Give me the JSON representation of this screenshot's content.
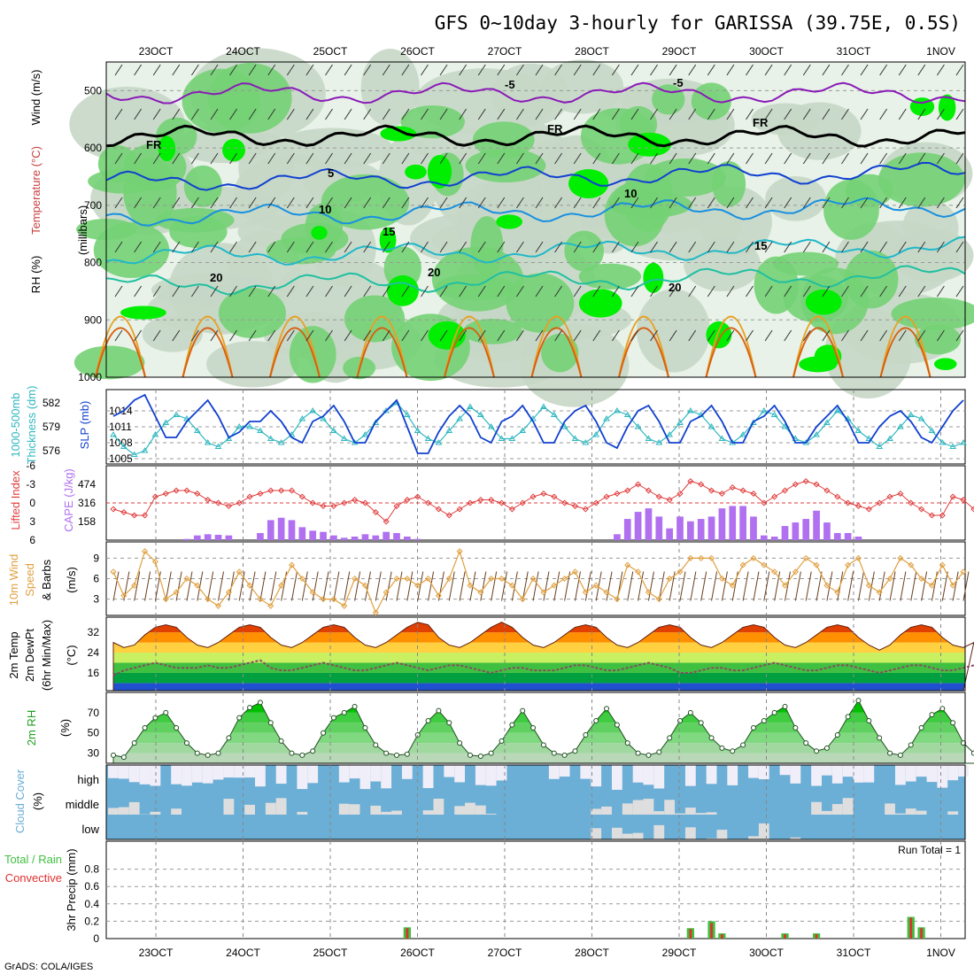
{
  "title": "GFS 0~10day 3-hourly for GARISSA (39.75E, 0.5S)",
  "footer": "GrADS: COLA/IGES",
  "colors": {
    "rh_light": "#e8f2e8",
    "rh_mid": "#c7d7c7",
    "rh_green": "#74d174",
    "rh_bright": "#00ee00",
    "slp": "#1040d0",
    "thickness": "#30b8c0",
    "lifted_index": "#e03c3c",
    "cape": "#b070f0",
    "wind": "#e0a040",
    "temp_dark": "#d33000",
    "temp_orange": "#ff8c00",
    "dewpt": "#8b4a60",
    "cloud": "#6baed6",
    "cloud_clear": "#f0eef8",
    "precip_total": "#40c040",
    "precip_conv": "#e03030"
  },
  "chart_data": [
    {
      "panel": "upper-air",
      "type": "heatmap",
      "ylabel_parts": [
        "RH (%)",
        "Temperature (°C)",
        "Wind (m/s)",
        "(millibars)"
      ],
      "y_ticks": [
        500,
        600,
        700,
        800,
        900,
        1000
      ],
      "ylim": [
        1000,
        450
      ],
      "isotherm_labels": [
        "-5",
        "FR",
        "FR",
        "FR",
        "-5",
        "5",
        "10",
        "10",
        "15",
        "15",
        "20",
        "20",
        "20"
      ]
    },
    {
      "panel": "slp-thickness",
      "type": "line",
      "ylabel_parts": [
        "1000-500mb",
        "Thickness (dm)",
        "SLP (mb)"
      ],
      "thickness_ticks": [
        576,
        579,
        582
      ],
      "slp_ticks": [
        1005,
        1008,
        1011,
        1014
      ],
      "slp": [
        1013,
        1014,
        1016,
        1017,
        1013,
        1009,
        1009,
        1012,
        1014,
        1016,
        1013,
        1009,
        1010,
        1012,
        1012,
        1014,
        1012,
        1009,
        1008,
        1012,
        1013,
        1015,
        1012,
        1008,
        1008,
        1012,
        1014,
        1016,
        1011,
        1006,
        1006,
        1010,
        1013,
        1015,
        1013,
        1009,
        1008,
        1012,
        1013,
        1015,
        1012,
        1008,
        1008,
        1012,
        1014,
        1015,
        1012,
        1008,
        1007,
        1011,
        1014,
        1015,
        1012,
        1008,
        1008,
        1012,
        1013,
        1015,
        1012,
        1008,
        1008,
        1012,
        1013,
        1015,
        1012,
        1008,
        1008,
        1011,
        1013,
        1015,
        1012,
        1008,
        1008,
        1011,
        1013,
        1014,
        1012,
        1009,
        1008,
        1011,
        1014,
        1016
      ],
      "thickness": [
        578.0,
        576.5,
        575.5,
        576.0,
        578.0,
        579.5,
        580.5,
        580.0,
        578.5,
        577.0,
        576.5,
        577.5,
        579.0,
        579.0,
        578.5,
        577.5,
        577.0,
        578.0,
        580.0,
        581.0,
        580.0,
        578.5,
        577.5,
        577.0,
        578.0,
        579.5,
        581.0,
        582.0,
        580.5,
        578.5,
        577.5,
        577.0,
        578.5,
        580.0,
        581.5,
        580.5,
        579.0,
        577.5,
        577.5,
        578.5,
        580.0,
        581.5,
        580.5,
        579.0,
        577.5,
        577.0,
        578.0,
        580.0,
        581.0,
        580.5,
        579.0,
        577.5,
        577.0,
        578.0,
        579.5,
        581.0,
        580.5,
        579.0,
        577.5,
        577.0,
        578.0,
        579.5,
        581.0,
        580.5,
        579.0,
        577.5,
        577.0,
        578.0,
        579.5,
        581.0,
        580.0,
        578.5,
        577.5,
        576.5,
        577.5,
        579.0,
        580.5,
        580.0,
        578.5,
        577.0,
        576.5,
        577.0
      ]
    },
    {
      "panel": "lifted-cape",
      "type": "bar",
      "ylabel_parts": [
        "Lifted Index",
        "CAPE (J/kg)"
      ],
      "li_ticks": [
        "-6",
        "-3",
        "0",
        "3",
        "6"
      ],
      "cape_ticks": [
        158,
        316,
        474
      ],
      "cape": [
        0,
        0,
        0,
        0,
        0,
        0,
        0,
        10,
        40,
        50,
        45,
        40,
        0,
        0,
        60,
        170,
        190,
        170,
        110,
        80,
        70,
        40,
        20,
        30,
        50,
        40,
        70,
        60,
        30,
        10,
        0,
        0,
        0,
        0,
        0,
        0,
        0,
        0,
        0,
        0,
        0,
        0,
        0,
        0,
        0,
        0,
        0,
        0,
        50,
        180,
        240,
        270,
        200,
        100,
        200,
        160,
        180,
        200,
        270,
        290,
        290,
        200,
        40,
        30,
        120,
        150,
        180,
        250,
        150,
        60,
        60,
        30,
        0,
        0,
        0,
        0,
        0,
        0,
        0,
        0,
        0,
        0
      ],
      "lifted_index": [
        1,
        1.5,
        2,
        2,
        -1,
        -1.5,
        -2,
        -2,
        -1.5,
        -0.5,
        0,
        0.5,
        0,
        -1,
        -1.5,
        -2,
        -2,
        -2,
        -1,
        0,
        0.5,
        0.5,
        0,
        -0.5,
        0,
        1.5,
        3,
        0.5,
        -0.5,
        -1,
        0,
        1,
        2,
        1,
        0,
        -0.5,
        -0.5,
        0,
        1,
        0,
        -1,
        -1.5,
        -1,
        0,
        0.5,
        1,
        0,
        -1,
        -1.5,
        -2,
        -3,
        -2,
        -1,
        -0.5,
        -1.5,
        -3.5,
        -3,
        -2,
        -1.5,
        -2.5,
        -2,
        -1.5,
        0,
        -1,
        -2,
        -3,
        -3.5,
        -3,
        -2,
        -1,
        0,
        0.5,
        1,
        0,
        -1,
        -1.5,
        0,
        1,
        2,
        2,
        -1,
        -0.5,
        1,
        2
      ]
    },
    {
      "panel": "wind10m",
      "type": "line",
      "ylabel_parts": [
        "10m Wind",
        "Speed",
        "& Barbs",
        "(m/s)"
      ],
      "y_ticks": [
        3,
        6,
        9
      ],
      "speed": [
        7,
        3.5,
        5,
        10,
        8.5,
        3,
        4,
        6,
        5,
        3,
        2,
        4,
        7,
        5,
        3,
        2,
        5,
        8,
        6,
        4,
        3,
        3,
        2,
        6,
        5,
        1,
        4,
        6,
        6,
        5,
        6,
        3.5,
        6,
        10,
        5,
        4,
        6,
        6,
        5,
        3,
        6,
        4,
        5,
        6,
        7,
        4,
        5,
        4,
        3,
        8,
        7,
        4,
        3,
        6,
        7,
        9,
        9,
        9,
        6,
        5,
        8,
        9,
        8,
        7,
        5,
        7,
        9,
        8,
        5,
        4,
        8,
        9,
        5,
        4,
        6,
        9,
        8,
        6,
        5,
        8,
        5,
        7
      ]
    },
    {
      "panel": "temp2m",
      "type": "area",
      "ylabel_parts": [
        "2m Temp",
        "2m DewPt",
        "(6hr Min/Max)",
        "(°C)"
      ],
      "y_ticks": [
        16,
        24,
        32
      ],
      "temp": [
        28,
        26,
        27,
        31,
        34,
        35,
        34,
        30,
        27,
        26,
        28,
        31,
        34,
        35,
        34,
        30,
        27,
        26,
        28,
        31,
        34,
        35,
        34,
        30,
        27,
        26,
        28,
        31,
        34,
        36,
        35,
        30,
        27,
        26,
        28,
        31,
        34,
        36,
        34,
        30,
        27,
        26,
        28,
        31,
        34,
        35,
        34,
        30,
        27,
        26,
        28,
        31,
        34,
        35,
        34,
        30,
        27,
        26,
        28,
        31,
        34,
        35,
        34,
        30,
        27,
        26,
        28,
        31,
        34,
        35,
        34,
        30,
        27,
        25,
        27,
        31,
        34,
        35,
        34,
        30,
        27,
        26,
        28
      ],
      "dewpt": [
        15,
        17,
        18,
        19,
        20,
        19,
        18,
        18,
        18,
        19,
        18,
        18,
        19,
        20,
        21,
        18,
        17,
        17,
        18,
        19,
        20,
        19,
        18,
        17,
        17,
        18,
        19,
        20,
        19,
        18,
        17,
        18,
        19,
        19,
        18,
        17,
        16,
        17,
        18,
        18,
        17,
        17,
        17,
        18,
        19,
        19,
        18,
        17,
        17,
        18,
        19,
        20,
        19,
        18,
        16,
        16,
        17,
        18,
        18,
        17,
        17,
        18,
        19,
        20,
        19,
        18,
        17,
        17,
        18,
        19,
        19,
        18,
        17,
        16,
        17,
        18,
        19,
        19,
        18,
        17,
        17,
        18,
        19
      ]
    },
    {
      "panel": "rh2m",
      "type": "area",
      "ylabel_parts": [
        "2m RH",
        "(%)"
      ],
      "y_ticks": [
        30,
        50,
        70
      ],
      "rh": [
        28,
        26,
        40,
        55,
        65,
        70,
        55,
        40,
        30,
        28,
        30,
        45,
        65,
        75,
        80,
        60,
        42,
        30,
        28,
        32,
        50,
        65,
        70,
        76,
        55,
        38,
        30,
        28,
        29,
        48,
        62,
        72,
        60,
        40,
        28,
        27,
        30,
        42,
        58,
        72,
        55,
        38,
        30,
        28,
        32,
        48,
        62,
        74,
        58,
        40,
        30,
        28,
        31,
        45,
        62,
        70,
        60,
        45,
        35,
        32,
        38,
        55,
        62,
        70,
        76,
        55,
        40,
        32,
        35,
        48,
        66,
        82,
        62,
        45,
        30,
        28,
        38,
        55,
        68,
        74,
        60,
        40,
        30,
        28,
        36,
        55,
        70,
        74,
        62
      ]
    },
    {
      "panel": "cloud-cover",
      "type": "bar",
      "ylabel_parts": [
        "Cloud Cover",
        "(%)"
      ],
      "labels": [
        "high",
        "middle",
        "low"
      ]
    },
    {
      "panel": "precip",
      "type": "bar",
      "ylabel_parts": [
        "Total / Rain",
        "Convective",
        "3hr Precip (mm)"
      ],
      "y_ticks": [
        "0",
        "0.2",
        "0.4",
        "0.6",
        "0.8"
      ],
      "run_total": "Run Total = 1",
      "total": [
        0,
        0,
        0,
        0,
        0,
        0,
        0,
        0,
        0,
        0,
        0,
        0,
        0,
        0,
        0,
        0,
        0,
        0,
        0,
        0,
        0,
        0,
        0,
        0,
        0,
        0,
        0,
        0,
        0.13,
        0,
        0,
        0,
        0,
        0,
        0,
        0,
        0,
        0,
        0,
        0,
        0,
        0,
        0,
        0,
        0,
        0,
        0,
        0,
        0,
        0,
        0,
        0,
        0,
        0,
        0,
        0.12,
        0,
        0.2,
        0.06,
        0,
        0,
        0,
        0,
        0,
        0.06,
        0,
        0,
        0.06,
        0,
        0,
        0,
        0,
        0,
        0,
        0,
        0,
        0.25,
        0.13,
        0,
        0,
        0,
        0,
        0,
        0
      ],
      "convective": [
        0,
        0,
        0,
        0,
        0,
        0,
        0,
        0,
        0,
        0,
        0,
        0,
        0,
        0,
        0,
        0,
        0,
        0,
        0,
        0,
        0,
        0,
        0,
        0,
        0,
        0,
        0,
        0,
        0.12,
        0,
        0,
        0,
        0,
        0,
        0,
        0,
        0,
        0,
        0,
        0,
        0,
        0,
        0,
        0,
        0,
        0,
        0,
        0,
        0,
        0,
        0,
        0,
        0,
        0,
        0,
        0.11,
        0,
        0.18,
        0.05,
        0,
        0,
        0,
        0,
        0,
        0.05,
        0,
        0,
        0.05,
        0,
        0,
        0,
        0,
        0,
        0,
        0,
        0,
        0.24,
        0.12,
        0,
        0,
        0,
        0,
        0,
        0
      ]
    }
  ],
  "x_axis": {
    "labels": [
      "23OCT",
      "24OCT",
      "25OCT",
      "26OCT",
      "27OCT",
      "28OCT",
      "29OCT",
      "30OCT",
      "31OCT",
      "1NOV"
    ]
  }
}
